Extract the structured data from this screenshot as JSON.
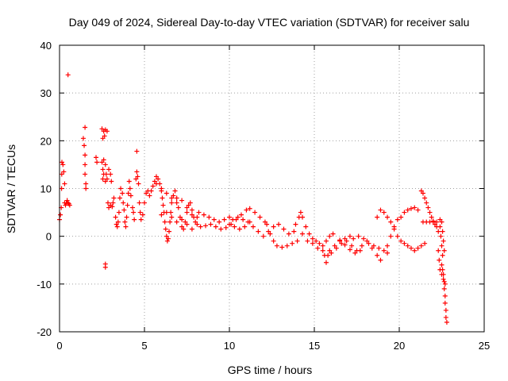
{
  "chart_data": {
    "type": "scatter",
    "title": "Day 049 of 2024, Sidereal Day-to-day VTEC variation (SDTVAR) for receiver salu",
    "xlabel": "GPS time / hours",
    "ylabel": "SDTVAR / TECUs",
    "xlim": [
      0,
      25
    ],
    "ylim": [
      -20,
      40
    ],
    "xticks": [
      0,
      5,
      10,
      15,
      20,
      25
    ],
    "yticks": [
      -20,
      -10,
      0,
      10,
      20,
      30,
      40
    ],
    "grid": true,
    "marker": "plus",
    "series": [
      {
        "name": "SDTVAR",
        "color": "#ff0000",
        "points": [
          [
            0.0,
            3.5
          ],
          [
            0.05,
            4.5
          ],
          [
            0.1,
            6.0
          ],
          [
            0.12,
            10.0
          ],
          [
            0.13,
            13.0
          ],
          [
            0.14,
            15.5
          ],
          [
            0.2,
            15.0
          ],
          [
            0.25,
            13.5
          ],
          [
            0.3,
            11.0
          ],
          [
            0.3,
            7.0
          ],
          [
            0.35,
            6.5
          ],
          [
            0.4,
            7.0
          ],
          [
            0.45,
            7.5
          ],
          [
            0.5,
            7.0
          ],
          [
            0.55,
            6.8
          ],
          [
            0.6,
            6.5
          ],
          [
            0.5,
            33.8
          ],
          [
            1.4,
            20.5
          ],
          [
            1.45,
            19.0
          ],
          [
            1.5,
            17.0
          ],
          [
            1.5,
            15.0
          ],
          [
            1.5,
            13.0
          ],
          [
            1.55,
            11.0
          ],
          [
            1.55,
            10.0
          ],
          [
            1.5,
            22.8
          ],
          [
            2.15,
            16.5
          ],
          [
            2.2,
            15.5
          ],
          [
            2.5,
            22.5
          ],
          [
            2.55,
            20.5
          ],
          [
            2.6,
            22.0
          ],
          [
            2.65,
            21.0
          ],
          [
            2.7,
            22.3
          ],
          [
            2.8,
            22.0
          ],
          [
            2.5,
            15.5
          ],
          [
            2.55,
            14.0
          ],
          [
            2.6,
            13.0
          ],
          [
            2.55,
            12.0
          ],
          [
            2.6,
            16.0
          ],
          [
            2.7,
            15.0
          ],
          [
            2.75,
            13.0
          ],
          [
            2.7,
            11.5
          ],
          [
            2.8,
            12.0
          ],
          [
            2.9,
            14.0
          ],
          [
            3.0,
            13.0
          ],
          [
            3.05,
            11.5
          ],
          [
            2.7,
            -5.8
          ],
          [
            2.7,
            -6.5
          ],
          [
            2.85,
            7.0
          ],
          [
            2.9,
            6.0
          ],
          [
            3.0,
            6.5
          ],
          [
            3.1,
            6.2
          ],
          [
            3.15,
            7.0
          ],
          [
            3.2,
            8.0
          ],
          [
            3.3,
            4.0
          ],
          [
            3.35,
            2.5
          ],
          [
            3.4,
            2.0
          ],
          [
            3.45,
            3.0
          ],
          [
            3.5,
            5.0
          ],
          [
            3.55,
            8.0
          ],
          [
            3.6,
            10.0
          ],
          [
            3.7,
            9.0
          ],
          [
            3.75,
            7.0
          ],
          [
            3.8,
            5.5
          ],
          [
            3.85,
            3.0
          ],
          [
            3.9,
            2.0
          ],
          [
            3.95,
            4.0
          ],
          [
            4.0,
            6.5
          ],
          [
            4.05,
            9.0
          ],
          [
            4.1,
            11.5
          ],
          [
            4.15,
            10.0
          ],
          [
            4.2,
            8.5
          ],
          [
            4.3,
            6.0
          ],
          [
            4.35,
            5.0
          ],
          [
            4.4,
            3.5
          ],
          [
            4.5,
            12.0
          ],
          [
            4.55,
            13.5
          ],
          [
            4.6,
            12.5
          ],
          [
            4.65,
            11.0
          ],
          [
            4.55,
            17.8
          ],
          [
            4.7,
            7.0
          ],
          [
            4.75,
            5.0
          ],
          [
            4.8,
            3.5
          ],
          [
            4.9,
            4.5
          ],
          [
            5.0,
            7.0
          ],
          [
            5.1,
            9.0
          ],
          [
            5.2,
            9.5
          ],
          [
            5.3,
            8.5
          ],
          [
            5.4,
            9.5
          ],
          [
            5.5,
            10.5
          ],
          [
            5.6,
            11.5
          ],
          [
            5.7,
            12.5
          ],
          [
            5.8,
            12.0
          ],
          [
            5.9,
            11.0
          ],
          [
            6.0,
            9.5
          ],
          [
            6.05,
            8.0
          ],
          [
            6.1,
            6.5
          ],
          [
            6.15,
            5.0
          ],
          [
            6.2,
            3.0
          ],
          [
            6.25,
            1.5
          ],
          [
            6.3,
            0.0
          ],
          [
            6.35,
            -1.0
          ],
          [
            6.4,
            -0.5
          ],
          [
            6.45,
            1.0
          ],
          [
            6.5,
            3.0
          ],
          [
            6.55,
            5.0
          ],
          [
            6.6,
            7.0
          ],
          [
            6.7,
            8.5
          ],
          [
            6.8,
            9.5
          ],
          [
            6.9,
            8.0
          ],
          [
            7.0,
            6.0
          ],
          [
            7.1,
            4.0
          ],
          [
            7.2,
            2.0
          ],
          [
            7.3,
            1.5
          ],
          [
            7.4,
            3.0
          ],
          [
            7.5,
            5.0
          ],
          [
            7.6,
            6.5
          ],
          [
            7.7,
            7.0
          ],
          [
            7.8,
            5.5
          ],
          [
            7.9,
            4.0
          ],
          [
            8.0,
            3.0
          ],
          [
            8.1,
            2.5
          ],
          [
            5.7,
            11.0
          ],
          [
            6.0,
            10.0
          ],
          [
            6.3,
            9.0
          ],
          [
            6.6,
            8.0
          ],
          [
            6.9,
            7.0
          ],
          [
            7.2,
            7.5
          ],
          [
            7.5,
            6.0
          ],
          [
            7.8,
            4.5
          ],
          [
            8.1,
            4.0
          ],
          [
            6.0,
            4.5
          ],
          [
            6.3,
            5.0
          ],
          [
            6.6,
            4.0
          ],
          [
            6.9,
            3.0
          ],
          [
            7.2,
            3.5
          ],
          [
            7.5,
            2.5
          ],
          [
            7.8,
            1.5
          ],
          [
            8.2,
            5.0
          ],
          [
            8.5,
            4.5
          ],
          [
            8.8,
            4.0
          ],
          [
            9.1,
            3.5
          ],
          [
            9.4,
            3.0
          ],
          [
            9.7,
            3.5
          ],
          [
            10.0,
            4.0
          ],
          [
            8.3,
            2.0
          ],
          [
            8.6,
            2.2
          ],
          [
            8.9,
            2.5
          ],
          [
            9.2,
            2.0
          ],
          [
            9.5,
            1.5
          ],
          [
            9.8,
            1.8
          ],
          [
            10.1,
            2.5
          ],
          [
            10.4,
            3.5
          ],
          [
            10.7,
            4.5
          ],
          [
            11.0,
            5.5
          ],
          [
            11.2,
            5.8
          ],
          [
            11.5,
            5.0
          ],
          [
            11.8,
            4.0
          ],
          [
            12.1,
            3.0
          ],
          [
            10.2,
            3.5
          ],
          [
            10.5,
            4.0
          ],
          [
            10.8,
            3.5
          ],
          [
            11.1,
            3.0
          ],
          [
            11.4,
            2.0
          ],
          [
            11.7,
            1.0
          ],
          [
            12.0,
            0.0
          ],
          [
            12.3,
            1.0
          ],
          [
            12.6,
            2.0
          ],
          [
            12.9,
            2.5
          ],
          [
            13.2,
            1.5
          ],
          [
            13.5,
            0.5
          ],
          [
            13.8,
            1.0
          ],
          [
            10.0,
            2.5
          ],
          [
            10.3,
            2.0
          ],
          [
            10.6,
            1.5
          ],
          [
            10.9,
            2.0
          ],
          [
            11.2,
            3.0
          ],
          [
            12.2,
            2.5
          ],
          [
            12.4,
            0.5
          ],
          [
            12.6,
            -1.0
          ],
          [
            12.8,
            -2.0
          ],
          [
            13.1,
            -2.3
          ],
          [
            13.4,
            -2.0
          ],
          [
            13.7,
            -1.5
          ],
          [
            14.0,
            -1.0
          ],
          [
            14.3,
            0.5
          ],
          [
            13.9,
            2.5
          ],
          [
            14.1,
            4.0
          ],
          [
            14.2,
            5.0
          ],
          [
            14.3,
            4.0
          ],
          [
            14.5,
            2.0
          ],
          [
            14.7,
            0.5
          ],
          [
            14.9,
            -0.5
          ],
          [
            15.1,
            -1.0
          ],
          [
            15.3,
            -1.5
          ],
          [
            15.5,
            -2.0
          ],
          [
            15.7,
            -1.0
          ],
          [
            15.9,
            0.0
          ],
          [
            16.1,
            0.5
          ],
          [
            14.6,
            -1.0
          ],
          [
            14.9,
            -1.5
          ],
          [
            15.2,
            -2.5
          ],
          [
            15.5,
            -3.0
          ],
          [
            15.6,
            -4.0
          ],
          [
            15.7,
            -5.5
          ],
          [
            15.8,
            -4.0
          ],
          [
            15.9,
            -3.0
          ],
          [
            16.2,
            -2.0
          ],
          [
            16.5,
            -1.0
          ],
          [
            16.8,
            -0.5
          ],
          [
            17.1,
            0.0
          ],
          [
            16.0,
            -3.5
          ],
          [
            16.3,
            -2.5
          ],
          [
            16.6,
            -1.5
          ],
          [
            16.9,
            -1.0
          ],
          [
            17.2,
            -2.0
          ],
          [
            17.5,
            -3.0
          ],
          [
            17.8,
            -2.0
          ],
          [
            18.1,
            -1.0
          ],
          [
            18.4,
            -2.5
          ],
          [
            18.7,
            -4.0
          ],
          [
            18.9,
            -5.0
          ],
          [
            17.3,
            -0.5
          ],
          [
            17.6,
            0.0
          ],
          [
            17.9,
            -0.5
          ],
          [
            18.2,
            -1.5
          ],
          [
            18.5,
            -2.0
          ],
          [
            18.8,
            -2.5
          ],
          [
            19.1,
            -3.0
          ],
          [
            19.3,
            -3.5
          ],
          [
            16.5,
            -0.8
          ],
          [
            16.8,
            -1.8
          ],
          [
            17.1,
            -2.8
          ],
          [
            17.4,
            -3.5
          ],
          [
            17.7,
            -3.0
          ],
          [
            18.7,
            4.0
          ],
          [
            18.9,
            5.5
          ],
          [
            19.1,
            5.0
          ],
          [
            19.3,
            4.0
          ],
          [
            19.5,
            3.0
          ],
          [
            19.7,
            1.5
          ],
          [
            19.9,
            0.0
          ],
          [
            20.1,
            -1.0
          ],
          [
            20.3,
            -1.5
          ],
          [
            20.5,
            -2.0
          ],
          [
            20.7,
            -2.5
          ],
          [
            20.9,
            -3.0
          ],
          [
            21.1,
            -2.5
          ],
          [
            21.3,
            -2.0
          ],
          [
            21.5,
            -1.5
          ],
          [
            19.3,
            -2.0
          ],
          [
            19.5,
            0.0
          ],
          [
            19.7,
            2.0
          ],
          [
            19.9,
            3.5
          ],
          [
            20.1,
            4.0
          ],
          [
            20.3,
            5.0
          ],
          [
            20.5,
            5.5
          ],
          [
            20.7,
            5.8
          ],
          [
            20.9,
            6.0
          ],
          [
            21.1,
            5.5
          ],
          [
            21.3,
            9.5
          ],
          [
            21.4,
            9.0
          ],
          [
            21.5,
            8.0
          ],
          [
            21.6,
            7.0
          ],
          [
            21.7,
            6.0
          ],
          [
            21.8,
            5.0
          ],
          [
            21.9,
            4.0
          ],
          [
            22.0,
            3.0
          ],
          [
            22.1,
            2.5
          ],
          [
            22.2,
            2.0
          ],
          [
            22.3,
            1.0
          ],
          [
            21.4,
            3.0
          ],
          [
            21.6,
            3.0
          ],
          [
            21.8,
            3.0
          ],
          [
            22.0,
            3.2
          ],
          [
            22.2,
            3.0
          ],
          [
            22.4,
            3.5
          ],
          [
            22.4,
            2.0
          ],
          [
            22.45,
            0.0
          ],
          [
            22.5,
            -2.0
          ],
          [
            22.55,
            -4.0
          ],
          [
            22.5,
            -6.0
          ],
          [
            22.55,
            -7.0
          ],
          [
            22.6,
            -8.0
          ],
          [
            22.65,
            -9.5
          ],
          [
            22.65,
            -11.0
          ],
          [
            22.7,
            -12.5
          ],
          [
            22.7,
            -14.0
          ],
          [
            22.75,
            -15.5
          ],
          [
            22.75,
            -17.0
          ],
          [
            22.8,
            -18.0
          ],
          [
            22.3,
            -3.0
          ],
          [
            22.35,
            -5.0
          ],
          [
            22.4,
            -7.0
          ],
          [
            22.5,
            -8.0
          ],
          [
            22.6,
            -9.0
          ],
          [
            22.7,
            -10.0
          ],
          [
            22.5,
            3.0
          ],
          [
            22.55,
            1.0
          ],
          [
            22.6,
            -1.0
          ],
          [
            22.65,
            -3.0
          ]
        ]
      }
    ]
  }
}
